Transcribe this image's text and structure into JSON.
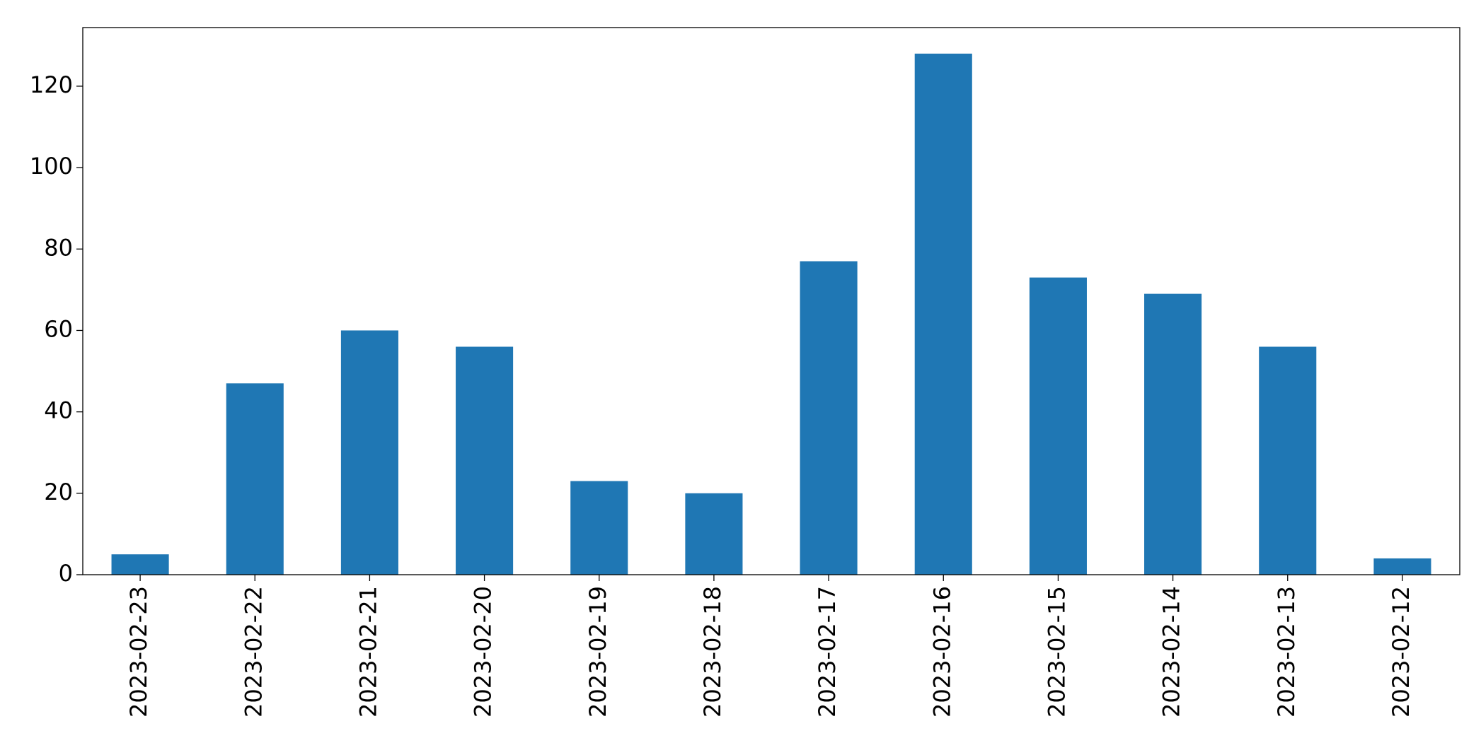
{
  "chart_data": {
    "type": "bar",
    "categories": [
      "2023-02-23",
      "2023-02-22",
      "2023-02-21",
      "2023-02-20",
      "2023-02-19",
      "2023-02-18",
      "2023-02-17",
      "2023-02-16",
      "2023-02-15",
      "2023-02-14",
      "2023-02-13",
      "2023-02-12"
    ],
    "values": [
      5,
      47,
      60,
      56,
      23,
      20,
      77,
      128,
      73,
      69,
      56,
      4
    ],
    "color": "#1f77b4",
    "ylim": [
      0,
      134.4
    ],
    "yticks": [
      0,
      20,
      40,
      60,
      80,
      100,
      120
    ],
    "grid": false
  }
}
